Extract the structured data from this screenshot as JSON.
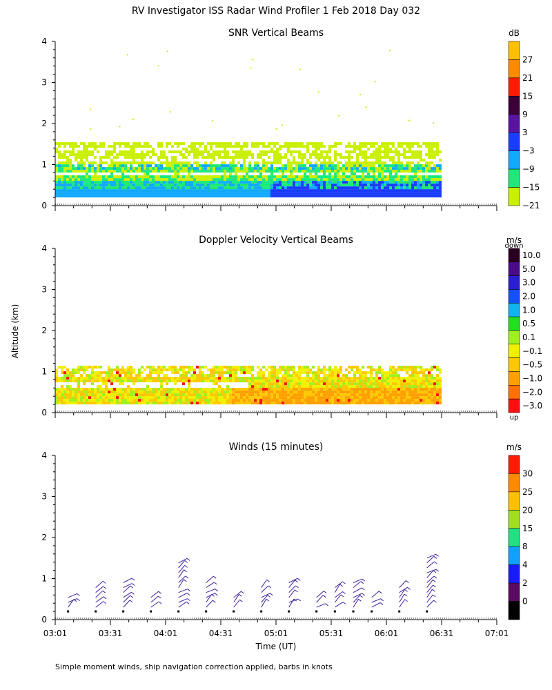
{
  "figure": {
    "title": "RV Investigator ISS Radar Wind Profiler   1 Feb 2018 Day 032",
    "ylabel": "Altitude (km)",
    "xlabel": "Time (UT)",
    "footnote": "Simple moment winds, ship navigation correction applied, barbs in knots"
  },
  "chart_data": [
    {
      "type": "heatmap",
      "title": "SNR Vertical Beams",
      "xlabel": "Time (UT)",
      "ylabel": "Altitude (km)",
      "xlim": [
        "03:01",
        "07:01"
      ],
      "ylim": [
        0,
        4
      ],
      "x_ticks": [
        "03:01",
        "03:31",
        "04:01",
        "04:31",
        "05:01",
        "05:31",
        "06:01",
        "06:31",
        "07:01"
      ],
      "y_ticks": [
        "0",
        "1",
        "2",
        "3",
        "4"
      ],
      "data_extent": {
        "time_start": "03:01",
        "time_end": "06:31",
        "alt_min_km": 0.2,
        "alt_max_km": 1.5
      },
      "colorbar": {
        "unit": "dB",
        "labels": [
          "27",
          "21",
          "15",
          "9",
          "3",
          "−3",
          "−9",
          "−15",
          "−21"
        ],
        "colors": [
          "#ffc000",
          "#ff8a00",
          "#ff1a00",
          "#3b0038",
          "#5a12a0",
          "#1a3cff",
          "#12aaff",
          "#1ee87a",
          "#c8f000"
        ]
      }
    },
    {
      "type": "heatmap",
      "title": "Doppler Velocity Vertical Beams",
      "xlabel": "Time (UT)",
      "ylabel": "Altitude (km)",
      "xlim": [
        "03:01",
        "07:01"
      ],
      "ylim": [
        0,
        4
      ],
      "x_ticks": [
        "03:01",
        "03:31",
        "04:01",
        "04:31",
        "05:01",
        "05:31",
        "06:01",
        "06:31",
        "07:01"
      ],
      "y_ticks": [
        "0",
        "1",
        "2",
        "3",
        "4"
      ],
      "data_extent": {
        "time_start": "03:01",
        "time_end": "06:31",
        "alt_min_km": 0.2,
        "alt_max_km": 1.1
      },
      "colorbar": {
        "unit": "m/s",
        "top_label": "down",
        "bottom_label": "up",
        "labels": [
          "10.0",
          "5.0",
          "3.0",
          "2.0",
          "1.0",
          "0.5",
          "0.1",
          "−0.1",
          "−0.5",
          "−1.0",
          "−2.0",
          "−3.0"
        ],
        "colors": [
          "#2a0020",
          "#4a0a8a",
          "#2a1ed0",
          "#1450ff",
          "#10b4f0",
          "#20e020",
          "#a0f020",
          "#f0f000",
          "#ffc800",
          "#ffa000",
          "#ff7000",
          "#ff1010"
        ]
      }
    },
    {
      "type": "wind_barbs",
      "title": "Winds (15 minutes)",
      "xlabel": "Time (UT)",
      "ylabel": "Altitude (km)",
      "xlim": [
        "03:01",
        "07:01"
      ],
      "ylim": [
        0,
        4
      ],
      "x_ticks": [
        "03:01",
        "03:31",
        "04:01",
        "04:31",
        "05:01",
        "05:31",
        "06:01",
        "06:31",
        "07:01"
      ],
      "y_ticks": [
        "0",
        "1",
        "2",
        "3",
        "4"
      ],
      "profile_times": [
        "03:08",
        "03:23",
        "03:38",
        "03:53",
        "04:08",
        "04:23",
        "04:38",
        "04:53",
        "05:08",
        "05:23",
        "05:33",
        "05:43",
        "05:53",
        "06:08",
        "06:23"
      ],
      "colorbar": {
        "unit": "m/s",
        "labels": [
          "30",
          "25",
          "20",
          "15",
          "8",
          "4",
          "2",
          "0"
        ],
        "colors": [
          "#ff1a00",
          "#ff8a00",
          "#ffc000",
          "#a0e020",
          "#20e080",
          "#10a0ff",
          "#1a1aff",
          "#5a0a60",
          "#000000"
        ]
      }
    }
  ],
  "colors": {
    "barb": "#3c1ea0",
    "background": "#ffffff"
  }
}
